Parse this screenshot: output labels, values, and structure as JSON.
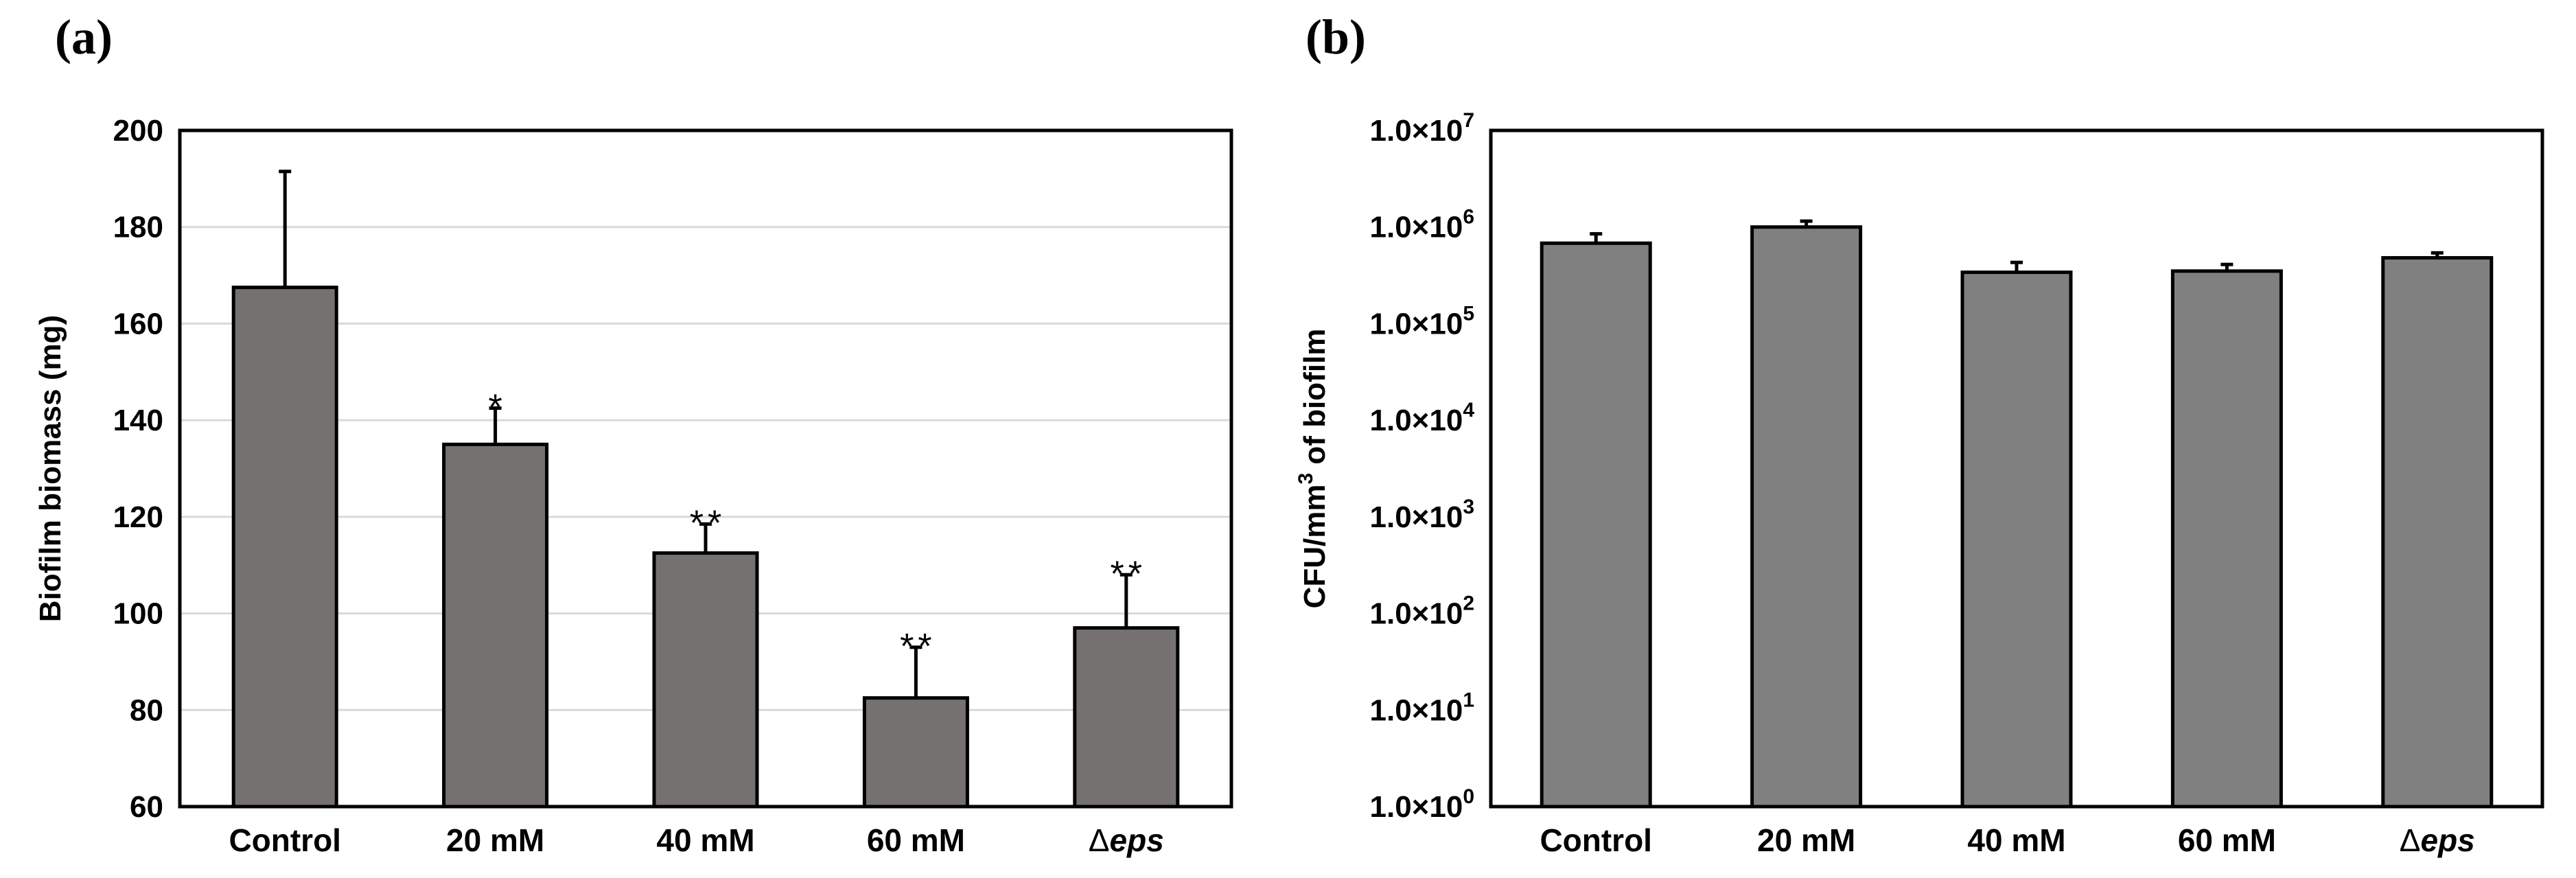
{
  "colors": {
    "bar_a": "#767171",
    "bar_b": "#808080",
    "grid": "#d9d9d9",
    "axis": "#000000"
  },
  "chart_data": [
    {
      "panel_label": "(a)",
      "type": "bar",
      "categories": [
        "Control",
        "20 mM",
        "40 mM",
        "60 mM",
        "Δeps"
      ],
      "category_parts": [
        {
          "prefix": "",
          "text": "Control",
          "italic": false
        },
        {
          "prefix": "",
          "text": "20 mM",
          "italic": false
        },
        {
          "prefix": "",
          "text": "40 mM",
          "italic": false
        },
        {
          "prefix": "",
          "text": "60 mM",
          "italic": false
        },
        {
          "prefix": "Δ",
          "text": "eps",
          "italic": true
        }
      ],
      "values": [
        167.5,
        135,
        112.5,
        82.5,
        97
      ],
      "errors": [
        24,
        7.5,
        6,
        10.5,
        11
      ],
      "significance": [
        "",
        "*",
        "**",
        "**",
        "**"
      ],
      "xlabel": "",
      "ylabel": "Biofilm biomass (mg)",
      "ylim": [
        60,
        200
      ],
      "yticks": [
        60,
        80,
        100,
        120,
        140,
        160,
        180,
        200
      ],
      "ytick_labels": [
        "60",
        "80",
        "100",
        "120",
        "140",
        "160",
        "180",
        "200"
      ],
      "yscale": "linear",
      "grid": true
    },
    {
      "panel_label": "(b)",
      "type": "bar",
      "categories": [
        "Control",
        "20 mM",
        "40 mM",
        "60 mM",
        "Δeps"
      ],
      "category_parts": [
        {
          "prefix": "",
          "text": "Control",
          "italic": false
        },
        {
          "prefix": "",
          "text": "20 mM",
          "italic": false
        },
        {
          "prefix": "",
          "text": "40 mM",
          "italic": false
        },
        {
          "prefix": "",
          "text": "60 mM",
          "italic": false
        },
        {
          "prefix": "Δ",
          "text": "eps",
          "italic": true
        }
      ],
      "values": [
        680000,
        1000000,
        340000,
        350000,
        480000
      ],
      "errors": [
        170000,
        150000,
        90000,
        60000,
        60000
      ],
      "significance": [
        "",
        "",
        "",
        "",
        ""
      ],
      "xlabel": "",
      "ylabel": "CFU/mm³ of biofilm",
      "ylabel_parts": {
        "base": "CFU/mm",
        "sup": "3",
        "rest": " of biofilm"
      },
      "ylim": [
        1,
        10000000
      ],
      "yticks": [
        1,
        10,
        100,
        1000,
        10000,
        100000,
        1000000,
        10000000
      ],
      "ytick_labels": [
        {
          "base": "1.0×10",
          "exp": "0"
        },
        {
          "base": "1.0×10",
          "exp": "1"
        },
        {
          "base": "1.0×10",
          "exp": "2"
        },
        {
          "base": "1.0×10",
          "exp": "3"
        },
        {
          "base": "1.0×10",
          "exp": "4"
        },
        {
          "base": "1.0×10",
          "exp": "5"
        },
        {
          "base": "1.0×10",
          "exp": "6"
        },
        {
          "base": "1.0×10",
          "exp": "7"
        }
      ],
      "yscale": "log",
      "grid": false
    }
  ]
}
